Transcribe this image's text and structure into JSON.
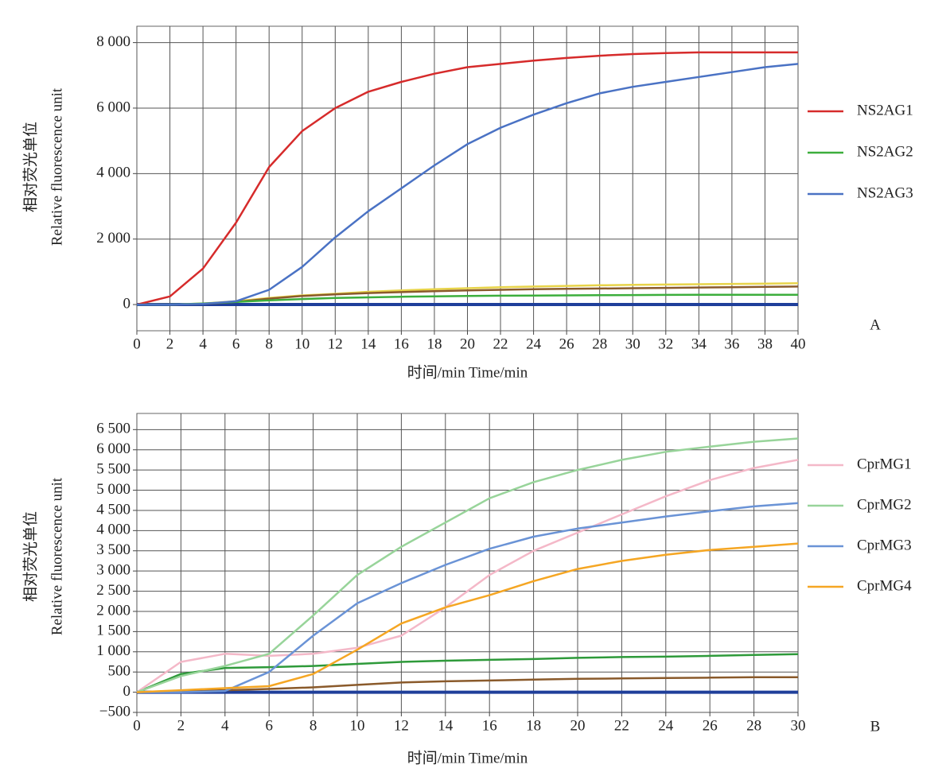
{
  "chart_data": [
    {
      "type": "line",
      "panel_label": "A",
      "ylabel": [
        "相对荧光单位",
        "Relative fluorescence unit"
      ],
      "xlabel": "时间/min Time/min",
      "x": [
        0,
        2,
        4,
        6,
        8,
        10,
        12,
        14,
        16,
        18,
        20,
        22,
        24,
        26,
        28,
        30,
        32,
        34,
        36,
        38,
        40
      ],
      "xlim": [
        0,
        40
      ],
      "xticks": [
        0,
        2,
        4,
        6,
        8,
        10,
        12,
        14,
        16,
        18,
        20,
        22,
        24,
        26,
        28,
        30,
        32,
        34,
        36,
        38,
        40
      ],
      "ylim": [
        -800,
        8500
      ],
      "yticks": [
        0,
        {
          "value": 2000,
          "label": "2 000"
        },
        {
          "value": 4000,
          "label": "4 000"
        },
        {
          "value": 6000,
          "label": "6 000"
        },
        {
          "value": 8000,
          "label": "8 000"
        }
      ],
      "grid": true,
      "series": [
        {
          "color": "#e8d44a",
          "values": [
            0,
            0,
            30,
            100,
            200,
            280,
            330,
            390,
            430,
            470,
            500,
            530,
            550,
            570,
            590,
            600,
            610,
            620,
            630,
            640,
            650
          ]
        },
        {
          "color": "#8a5a2b",
          "values": [
            0,
            0,
            20,
            80,
            180,
            260,
            310,
            350,
            380,
            410,
            430,
            450,
            470,
            480,
            490,
            500,
            510,
            520,
            530,
            540,
            550
          ]
        },
        {
          "name": "NS2AG1",
          "color": "#d62b2b",
          "values": [
            0,
            250,
            1100,
            2500,
            4200,
            5300,
            6000,
            6500,
            6800,
            7050,
            7250,
            7350,
            7450,
            7530,
            7600,
            7650,
            7680,
            7700,
            7700,
            7700,
            7700
          ]
        },
        {
          "name": "NS2AG2",
          "color": "#3cae3c",
          "values": [
            0,
            0,
            30,
            80,
            130,
            170,
            200,
            220,
            240,
            250,
            260,
            270,
            275,
            280,
            285,
            290,
            295,
            300,
            300,
            300,
            300
          ]
        },
        {
          "name": "NS2AG3",
          "color": "#4a72c4",
          "values": [
            0,
            0,
            20,
            100,
            450,
            1150,
            2050,
            2850,
            3550,
            4250,
            4900,
            5400,
            5800,
            6150,
            6450,
            6650,
            6800,
            6950,
            7100,
            7250,
            7350
          ]
        }
      ]
    },
    {
      "type": "line",
      "panel_label": "B",
      "ylabel": [
        "相对荧光单位",
        "Relative fluorescence unit"
      ],
      "xlabel": "时间/min Time/min",
      "x": [
        0,
        2,
        4,
        6,
        8,
        10,
        12,
        14,
        16,
        18,
        20,
        22,
        24,
        26,
        28,
        30
      ],
      "xlim": [
        0,
        30
      ],
      "xticks": [
        0,
        2,
        4,
        6,
        8,
        10,
        12,
        14,
        16,
        18,
        20,
        22,
        24,
        26,
        28,
        30
      ],
      "ylim": [
        -500,
        6900
      ],
      "yticks": [
        {
          "value": -500,
          "label": "−500"
        },
        0,
        500,
        {
          "value": 1000,
          "label": "1 000"
        },
        {
          "value": 1500,
          "label": "1 500"
        },
        {
          "value": 2000,
          "label": "2 000"
        },
        {
          "value": 2500,
          "label": "2 500"
        },
        {
          "value": 3000,
          "label": "3 000"
        },
        {
          "value": 3500,
          "label": "3 500"
        },
        {
          "value": 4000,
          "label": "4 000"
        },
        {
          "value": 4500,
          "label": "4 500"
        },
        {
          "value": 5000,
          "label": "5 000"
        },
        {
          "value": 5500,
          "label": "5 500"
        },
        {
          "value": 6000,
          "label": "6 000"
        },
        {
          "value": 6500,
          "label": "6 500"
        }
      ],
      "grid": true,
      "series": [
        {
          "color": "#2e9a3a",
          "values": [
            0,
            450,
            600,
            620,
            650,
            700,
            750,
            780,
            800,
            820,
            850,
            870,
            880,
            900,
            920,
            940
          ]
        },
        {
          "color": "#8a5a2b",
          "values": [
            0,
            30,
            50,
            80,
            120,
            180,
            240,
            270,
            290,
            310,
            330,
            340,
            350,
            360,
            370,
            370
          ]
        },
        {
          "name": "CprMG1",
          "color": "#f4b8c8",
          "values": [
            0,
            750,
            950,
            900,
            950,
            1100,
            1400,
            2100,
            2900,
            3500,
            3950,
            4400,
            4850,
            5250,
            5550,
            5750
          ]
        },
        {
          "name": "CprMG2",
          "color": "#98d49a",
          "values": [
            0,
            400,
            650,
            950,
            1900,
            2900,
            3600,
            4200,
            4800,
            5200,
            5500,
            5750,
            5950,
            6080,
            6200,
            6280
          ]
        },
        {
          "name": "CprMG3",
          "color": "#6a93d6",
          "values": [
            0,
            0,
            30,
            500,
            1400,
            2200,
            2700,
            3150,
            3550,
            3850,
            4050,
            4200,
            4350,
            4480,
            4600,
            4680
          ]
        },
        {
          "name": "CprMG4",
          "color": "#f5a623",
          "values": [
            0,
            50,
            100,
            150,
            450,
            1050,
            1700,
            2100,
            2400,
            2750,
            3050,
            3250,
            3400,
            3520,
            3600,
            3680
          ]
        }
      ]
    }
  ]
}
